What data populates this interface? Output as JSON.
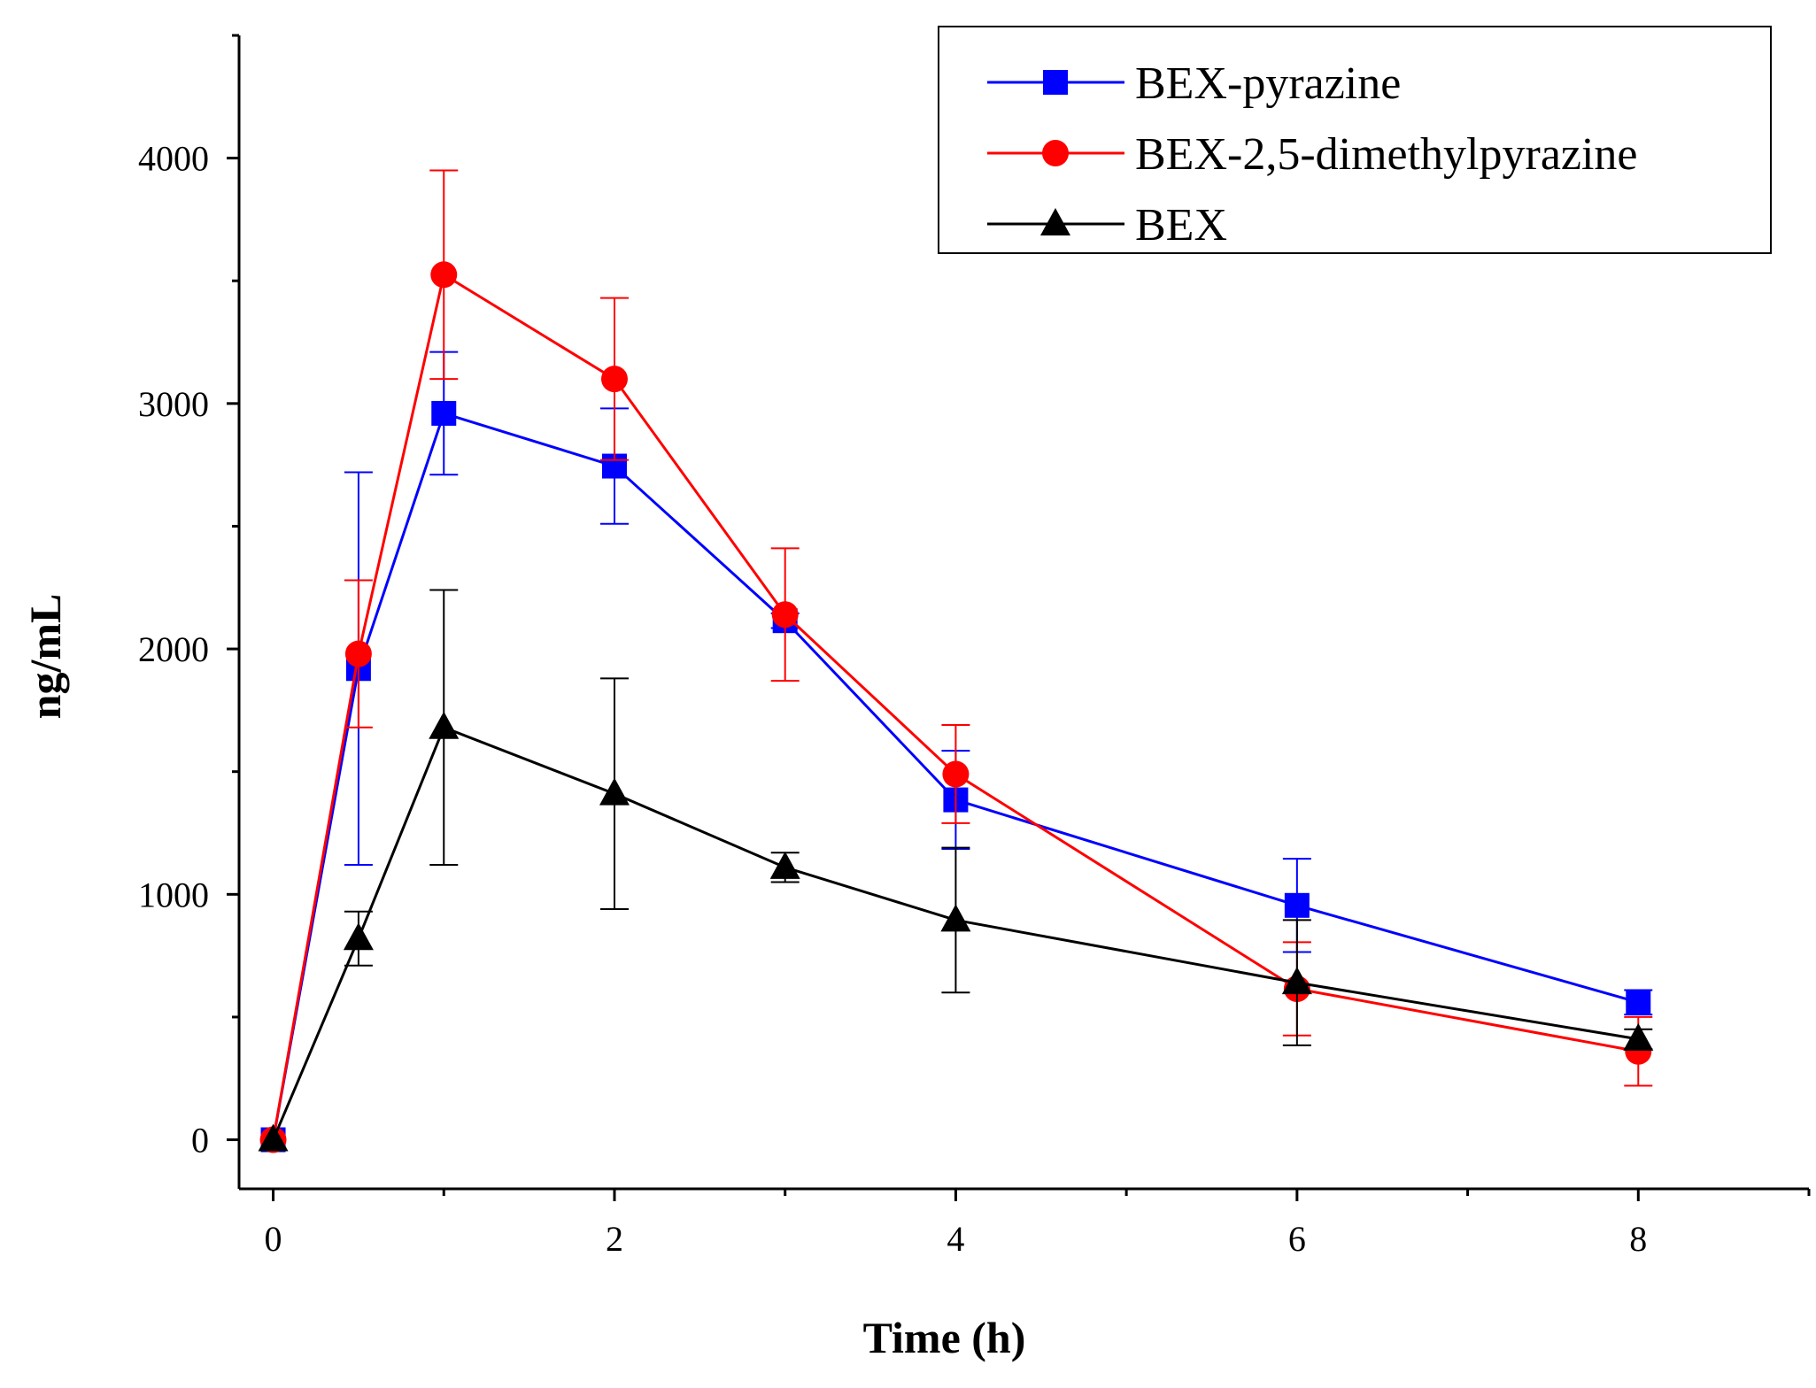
{
  "chart_data": {
    "type": "line",
    "title": "",
    "xlabel": "Time (h)",
    "ylabel": "ng/mL",
    "xlim": [
      -0.2,
      9.0
    ],
    "ylim": [
      -200,
      4500
    ],
    "x_ticks": [
      0,
      2,
      4,
      6,
      8
    ],
    "x_tick_labels": [
      "0",
      "2",
      "4",
      "6",
      "8"
    ],
    "x_minor_ticks": [
      1,
      3,
      5,
      7,
      9
    ],
    "y_ticks": [
      0,
      1000,
      2000,
      3000,
      4000
    ],
    "y_tick_labels": [
      "0",
      "1000",
      "2000",
      "3000",
      "4000"
    ],
    "y_minor_ticks": [
      500,
      1500,
      2500,
      3500,
      4500
    ],
    "grid": false,
    "legend_position": "top-right",
    "x": [
      0,
      0.5,
      1,
      2,
      3,
      4,
      6,
      8
    ],
    "series": [
      {
        "name": "BEX-pyrazine",
        "color": "#0000ff",
        "marker": "square",
        "values": [
          0,
          1920,
          2960,
          2745,
          2115,
          1385,
          955,
          560
        ],
        "errors": [
          0,
          800,
          250,
          235,
          30,
          200,
          190,
          50
        ]
      },
      {
        "name": "BEX-2,5-dimethylpyrazine",
        "color": "#ff0000",
        "marker": "circle",
        "values": [
          0,
          1980,
          3525,
          3100,
          2140,
          1490,
          615,
          360
        ],
        "errors": [
          0,
          300,
          425,
          330,
          270,
          200,
          190,
          140
        ]
      },
      {
        "name": "BEX",
        "color": "#000000",
        "marker": "triangle",
        "values": [
          0,
          820,
          1680,
          1410,
          1110,
          895,
          640,
          410
        ],
        "errors": [
          0,
          110,
          560,
          470,
          60,
          295,
          255,
          40
        ]
      }
    ]
  }
}
